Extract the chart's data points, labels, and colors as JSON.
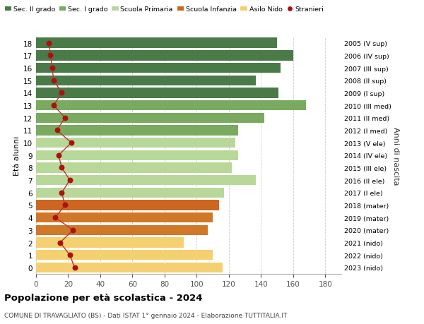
{
  "ages": [
    18,
    17,
    16,
    15,
    14,
    13,
    12,
    11,
    10,
    9,
    8,
    7,
    6,
    5,
    4,
    3,
    2,
    1,
    0
  ],
  "right_labels": [
    "2005 (V sup)",
    "2006 (IV sup)",
    "2007 (III sup)",
    "2008 (II sup)",
    "2009 (I sup)",
    "2010 (III med)",
    "2011 (II med)",
    "2012 (I med)",
    "2013 (V ele)",
    "2014 (IV ele)",
    "2015 (III ele)",
    "2016 (II ele)",
    "2017 (I ele)",
    "2018 (mater)",
    "2019 (mater)",
    "2020 (mater)",
    "2021 (nido)",
    "2022 (nido)",
    "2023 (nido)"
  ],
  "bar_values": [
    150,
    160,
    152,
    137,
    151,
    168,
    142,
    126,
    124,
    126,
    122,
    137,
    117,
    114,
    110,
    107,
    92,
    110,
    116
  ],
  "stranieri_values": [
    8,
    9,
    10,
    11,
    16,
    11,
    18,
    13,
    22,
    14,
    16,
    21,
    16,
    18,
    12,
    23,
    15,
    21,
    24
  ],
  "bar_colors": [
    "#4a7a47",
    "#4a7a47",
    "#4a7a47",
    "#4a7a47",
    "#4a7a47",
    "#7aaa60",
    "#7aaa60",
    "#7aaa60",
    "#b8d89a",
    "#b8d89a",
    "#b8d89a",
    "#b8d89a",
    "#b8d89a",
    "#cc6620",
    "#d07828",
    "#d07828",
    "#f5d070",
    "#f5d070",
    "#f5d070"
  ],
  "stranieri_color": "#aa1111",
  "stranieri_line_color": "#bb3333",
  "legend_labels": [
    "Sec. II grado",
    "Sec. I grado",
    "Scuola Primaria",
    "Scuola Infanzia",
    "Asilo Nido",
    "Stranieri"
  ],
  "legend_colors": [
    "#4a7a47",
    "#7aaa60",
    "#b8d89a",
    "#cc6620",
    "#f5d070",
    "#aa1111"
  ],
  "title": "Popolazione per età scolastica - 2024",
  "subtitle": "COMUNE DI TRAVAGLIATO (BS) - Dati ISTAT 1° gennaio 2024 - Elaborazione TUTTITALIA.IT",
  "ylabel": "Età alunni",
  "xlabel_right": "Anni di nascita",
  "xlim": [
    0,
    190
  ],
  "xticks": [
    0,
    20,
    40,
    60,
    80,
    100,
    120,
    140,
    160,
    180
  ],
  "background_color": "#ffffff",
  "grid_color": "#cccccc"
}
